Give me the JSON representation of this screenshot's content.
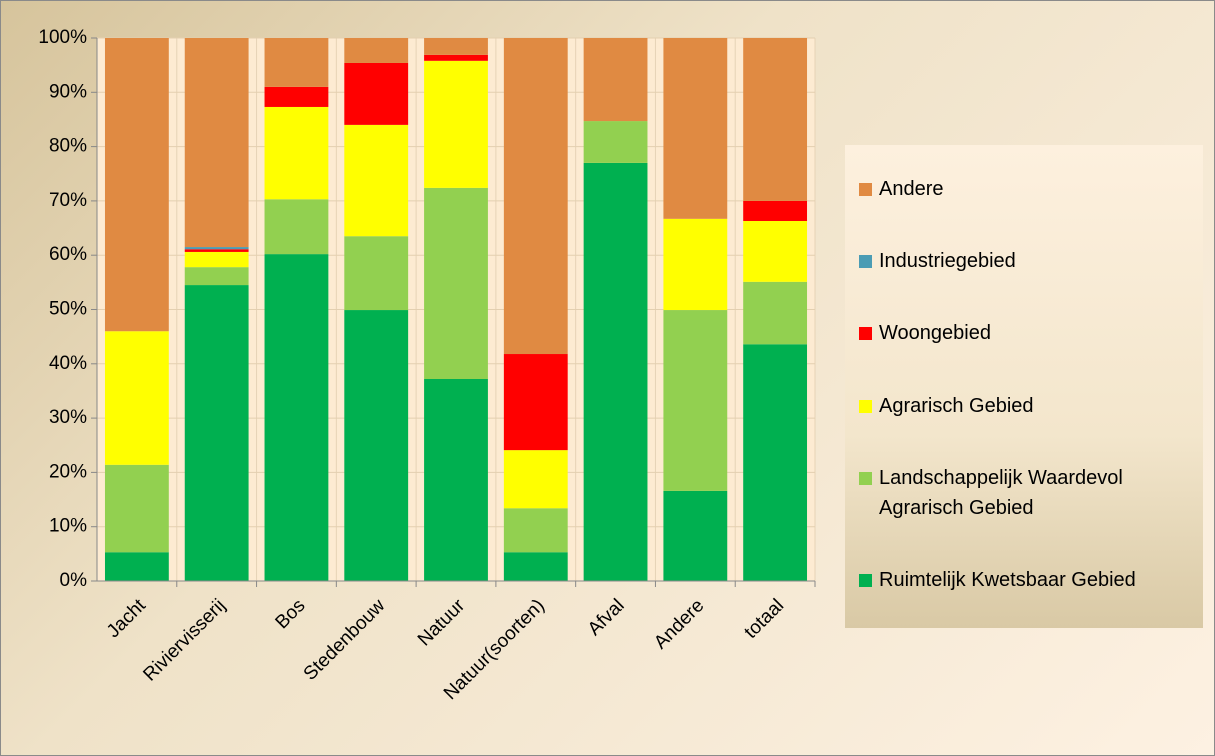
{
  "chart_data": {
    "type": "stacked_bar_100",
    "categories": [
      "Jacht",
      "Riviervisserij",
      "Bos",
      "Stedenbouw",
      "Natuur",
      "Natuur(soorten)",
      "Afval",
      "Andere",
      "totaal"
    ],
    "series": [
      {
        "name": "Ruimtelijk Kwetsbaar Gebied",
        "color": "#00b050",
        "values": [
          5.3,
          54.5,
          60.2,
          49.9,
          37.2,
          5.3,
          77.0,
          16.6,
          43.6
        ]
      },
      {
        "name": "Landschappelijk Waardevol Agrarisch Gebied",
        "color": "#92d050",
        "values": [
          16.1,
          3.3,
          10.1,
          13.6,
          35.2,
          8.1,
          7.7,
          33.3,
          11.5
        ]
      },
      {
        "name": "Agrarisch Gebied",
        "color": "#ffff00",
        "values": [
          24.6,
          2.8,
          17.0,
          20.5,
          23.4,
          10.7,
          0,
          16.8,
          11.2
        ]
      },
      {
        "name": "Woongebied",
        "color": "#ff0000",
        "values": [
          0,
          0.5,
          3.7,
          11.4,
          1.1,
          17.7,
          0,
          0,
          3.7
        ]
      },
      {
        "name": "Industriegebied",
        "color": "#4b9cb4",
        "values": [
          0,
          0.4,
          0,
          0,
          0,
          0,
          0,
          0,
          0
        ]
      },
      {
        "name": "Andere",
        "color": "#e08a42",
        "values": [
          54.0,
          38.5,
          9.0,
          4.6,
          3.1,
          58.2,
          15.3,
          33.3,
          30.0
        ]
      }
    ],
    "ylim": [
      0,
      100
    ],
    "yticks": [
      {
        "value": 0,
        "label": "0%"
      },
      {
        "value": 10,
        "label": "10%"
      },
      {
        "value": 20,
        "label": "20%"
      },
      {
        "value": 30,
        "label": "30%"
      },
      {
        "value": 40,
        "label": "40%"
      },
      {
        "value": 50,
        "label": "50%"
      },
      {
        "value": 60,
        "label": "60%"
      },
      {
        "value": 70,
        "label": "70%"
      },
      {
        "value": 80,
        "label": "80%"
      },
      {
        "value": 90,
        "label": "90%"
      },
      {
        "value": 100,
        "label": "100%"
      }
    ],
    "grid": true,
    "legend": "right"
  }
}
